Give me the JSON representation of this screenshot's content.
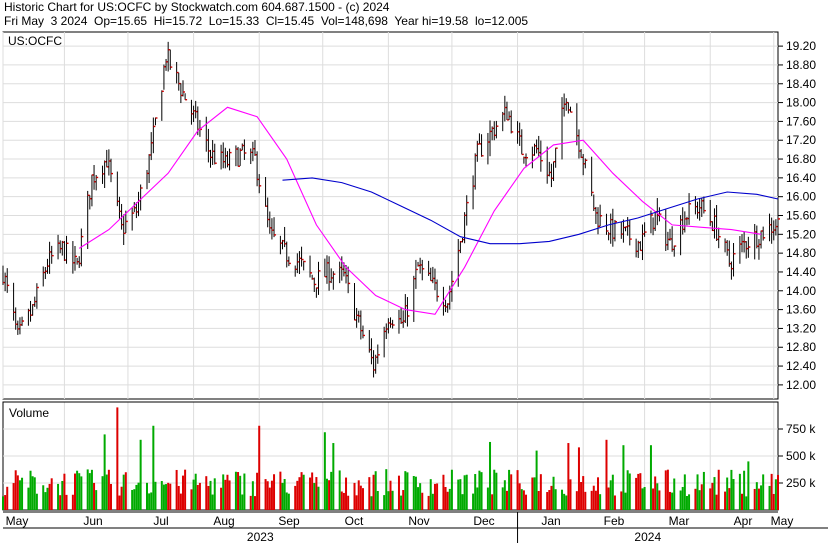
{
  "header": {
    "line1": "Historic Chart for US:OCFC by Stockwatch.com 604.687.1500 - (c) 2024",
    "line2": "Fri May  3 2024  Op=15.65  Hi=15.72  Lo=15.33  Cl=15.45  Vol=148,698  Year hi=19.58  lo=12.005"
  },
  "chart_data": [
    {
      "type": "ohlc",
      "title": "US:OCFC",
      "ylim": [
        11.7,
        19.5
      ],
      "y_ticks": [
        "19.20",
        "18.80",
        "18.40",
        "18.00",
        "17.60",
        "17.20",
        "16.80",
        "16.40",
        "16.00",
        "15.60",
        "15.20",
        "14.80",
        "14.40",
        "14.00",
        "13.60",
        "13.20",
        "12.80",
        "12.40",
        "12.00"
      ],
      "x_month_labels": [
        "May",
        "Jun",
        "Jul",
        "Aug",
        "Sep",
        "Oct",
        "Nov",
        "Dec",
        "Jan",
        "Feb",
        "Mar",
        "Apr",
        "May"
      ],
      "year_labels": [
        "2023",
        "2024"
      ],
      "grid": true,
      "price_path": [
        {
          "date": "2023-05-03",
          "close": 14.4
        },
        {
          "date": "2023-05-10",
          "close": 13.0
        },
        {
          "date": "2023-05-17",
          "close": 13.6
        },
        {
          "date": "2023-05-24",
          "close": 14.6
        },
        {
          "date": "2023-05-31",
          "close": 14.9
        },
        {
          "date": "2023-06-07",
          "close": 14.5
        },
        {
          "date": "2023-06-14",
          "close": 16.4
        },
        {
          "date": "2023-06-21",
          "close": 16.8
        },
        {
          "date": "2023-06-28",
          "close": 15.3
        },
        {
          "date": "2023-07-05",
          "close": 15.7
        },
        {
          "date": "2023-07-12",
          "close": 17.0
        },
        {
          "date": "2023-07-19",
          "close": 19.0
        },
        {
          "date": "2023-07-26",
          "close": 18.3
        },
        {
          "date": "2023-08-02",
          "close": 17.6
        },
        {
          "date": "2023-08-09",
          "close": 16.9
        },
        {
          "date": "2023-08-16",
          "close": 16.7
        },
        {
          "date": "2023-08-23",
          "close": 16.9
        },
        {
          "date": "2023-08-30",
          "close": 16.8
        },
        {
          "date": "2023-09-06",
          "close": 15.2
        },
        {
          "date": "2023-09-13",
          "close": 14.8
        },
        {
          "date": "2023-09-20",
          "close": 14.6
        },
        {
          "date": "2023-09-27",
          "close": 14.2
        },
        {
          "date": "2023-10-04",
          "close": 14.4
        },
        {
          "date": "2023-10-11",
          "close": 14.3
        },
        {
          "date": "2023-10-18",
          "close": 13.3
        },
        {
          "date": "2023-10-25",
          "close": 12.4
        },
        {
          "date": "2023-11-01",
          "close": 13.5
        },
        {
          "date": "2023-11-08",
          "close": 13.3
        },
        {
          "date": "2023-11-15",
          "close": 14.5
        },
        {
          "date": "2023-11-22",
          "close": 14.1
        },
        {
          "date": "2023-11-29",
          "close": 13.8
        },
        {
          "date": "2023-12-06",
          "close": 15.3
        },
        {
          "date": "2023-12-13",
          "close": 16.9
        },
        {
          "date": "2023-12-20",
          "close": 17.4
        },
        {
          "date": "2023-12-27",
          "close": 17.8
        },
        {
          "date": "2024-01-03",
          "close": 17.0
        },
        {
          "date": "2024-01-10",
          "close": 17.0
        },
        {
          "date": "2024-01-17",
          "close": 16.4
        },
        {
          "date": "2024-01-24",
          "close": 18.2
        },
        {
          "date": "2024-01-31",
          "close": 17.0
        },
        {
          "date": "2024-02-07",
          "close": 15.6
        },
        {
          "date": "2024-02-14",
          "close": 15.3
        },
        {
          "date": "2024-02-21",
          "close": 15.2
        },
        {
          "date": "2024-02-28",
          "close": 15.0
        },
        {
          "date": "2024-03-06",
          "close": 15.6
        },
        {
          "date": "2024-03-13",
          "close": 15.0
        },
        {
          "date": "2024-03-20",
          "close": 15.6
        },
        {
          "date": "2024-03-27",
          "close": 15.8
        },
        {
          "date": "2024-04-03",
          "close": 15.4
        },
        {
          "date": "2024-04-10",
          "close": 14.6
        },
        {
          "date": "2024-04-17",
          "close": 15.0
        },
        {
          "date": "2024-04-24",
          "close": 15.2
        },
        {
          "date": "2024-05-03",
          "close": 15.45
        }
      ],
      "series": [
        {
          "color": "#ff00ff",
          "points": [
            {
              "date": "2023-06-08",
              "value": 14.9
            },
            {
              "date": "2023-06-22",
              "value": 15.3
            },
            {
              "date": "2023-07-06",
              "value": 15.9
            },
            {
              "date": "2023-07-20",
              "value": 16.5
            },
            {
              "date": "2023-08-03",
              "value": 17.4
            },
            {
              "date": "2023-08-17",
              "value": 17.9
            },
            {
              "date": "2023-08-31",
              "value": 17.7
            },
            {
              "date": "2023-09-14",
              "value": 16.8
            },
            {
              "date": "2023-09-28",
              "value": 15.4
            },
            {
              "date": "2023-10-12",
              "value": 14.5
            },
            {
              "date": "2023-10-26",
              "value": 13.9
            },
            {
              "date": "2023-11-09",
              "value": 13.6
            },
            {
              "date": "2023-11-23",
              "value": 13.5
            },
            {
              "date": "2023-12-07",
              "value": 14.5
            },
            {
              "date": "2023-12-21",
              "value": 15.7
            },
            {
              "date": "2024-01-04",
              "value": 16.6
            },
            {
              "date": "2024-01-18",
              "value": 17.1
            },
            {
              "date": "2024-02-01",
              "value": 17.2
            },
            {
              "date": "2024-02-15",
              "value": 16.5
            },
            {
              "date": "2024-02-29",
              "value": 15.9
            },
            {
              "date": "2024-03-14",
              "value": 15.4
            },
            {
              "date": "2024-03-28",
              "value": 15.35
            },
            {
              "date": "2024-04-11",
              "value": 15.3
            },
            {
              "date": "2024-04-25",
              "value": 15.2
            }
          ]
        },
        {
          "color": "#0000cc",
          "points": [
            {
              "date": "2023-09-12",
              "value": 16.35
            },
            {
              "date": "2023-09-26",
              "value": 16.4
            },
            {
              "date": "2023-10-10",
              "value": 16.3
            },
            {
              "date": "2023-10-24",
              "value": 16.1
            },
            {
              "date": "2023-11-07",
              "value": 15.8
            },
            {
              "date": "2023-11-21",
              "value": 15.5
            },
            {
              "date": "2023-12-05",
              "value": 15.15
            },
            {
              "date": "2023-12-19",
              "value": 15.0
            },
            {
              "date": "2024-01-02",
              "value": 15.0
            },
            {
              "date": "2024-01-16",
              "value": 15.05
            },
            {
              "date": "2024-01-30",
              "value": 15.2
            },
            {
              "date": "2024-02-13",
              "value": 15.4
            },
            {
              "date": "2024-02-27",
              "value": 15.55
            },
            {
              "date": "2024-03-12",
              "value": 15.75
            },
            {
              "date": "2024-03-26",
              "value": 15.95
            },
            {
              "date": "2024-04-09",
              "value": 16.1
            },
            {
              "date": "2024-04-23",
              "value": 16.05
            },
            {
              "date": "2024-05-03",
              "value": 15.95
            }
          ]
        }
      ]
    },
    {
      "type": "bar",
      "title": "Volume",
      "ylim": [
        0,
        1000000
      ],
      "y_ticks": [
        {
          "value": 750000,
          "label": "750 k"
        },
        {
          "value": 500000,
          "label": "500 k"
        },
        {
          "value": 250000,
          "label": "250 k"
        }
      ],
      "colors": {
        "up": "#00aa00",
        "down": "#dd0000"
      },
      "avg_volume": 280000,
      "spikes": [
        {
          "date": "2023-06-20",
          "value": 700000
        },
        {
          "date": "2023-06-26",
          "value": 950000
        },
        {
          "date": "2023-07-07",
          "value": 650000
        },
        {
          "date": "2023-07-13",
          "value": 780000
        },
        {
          "date": "2023-09-01",
          "value": 780000
        },
        {
          "date": "2023-10-02",
          "value": 720000
        },
        {
          "date": "2023-10-06",
          "value": 620000
        },
        {
          "date": "2023-12-19",
          "value": 630000
        },
        {
          "date": "2024-01-10",
          "value": 550000
        },
        {
          "date": "2024-01-25",
          "value": 620000
        },
        {
          "date": "2024-01-30",
          "value": 580000
        },
        {
          "date": "2024-02-12",
          "value": 650000
        },
        {
          "date": "2024-02-20",
          "value": 600000
        },
        {
          "date": "2024-03-04",
          "value": 600000
        },
        {
          "date": "2024-04-19",
          "value": 450000
        }
      ]
    }
  ]
}
